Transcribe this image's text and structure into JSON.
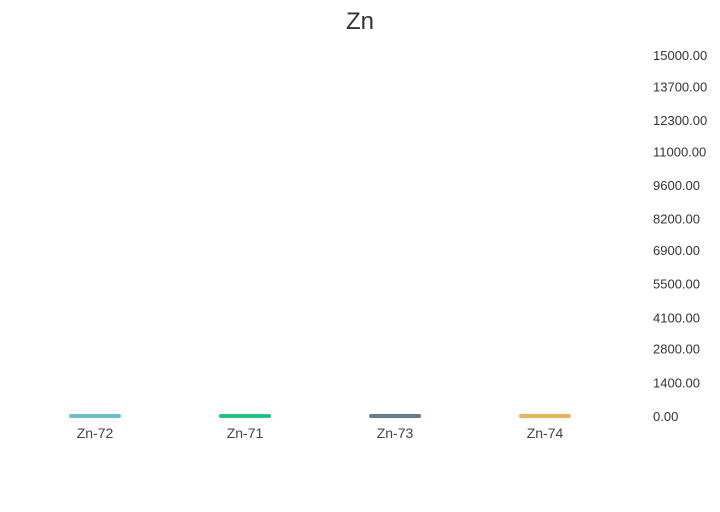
{
  "chart_data": {
    "type": "bar",
    "title": "Zn",
    "categories": [
      "Zn-72",
      "Zn-71",
      "Zn-73",
      "Zn-74"
    ],
    "values": [
      0,
      0,
      0,
      0
    ],
    "colors": [
      "#6cc1c9",
      "#27bf84",
      "#6b7b86",
      "#ecb061"
    ],
    "ylim": [
      0,
      15000
    ],
    "yticks": [
      "15000.00",
      "13700.00",
      "12300.00",
      "11000.00",
      "9600.00",
      "8200.00",
      "6900.00",
      "5500.00",
      "4100.00",
      "2800.00",
      "1400.00",
      "0.00"
    ],
    "y_axis_side": "right",
    "grid": false,
    "legend": "none"
  }
}
